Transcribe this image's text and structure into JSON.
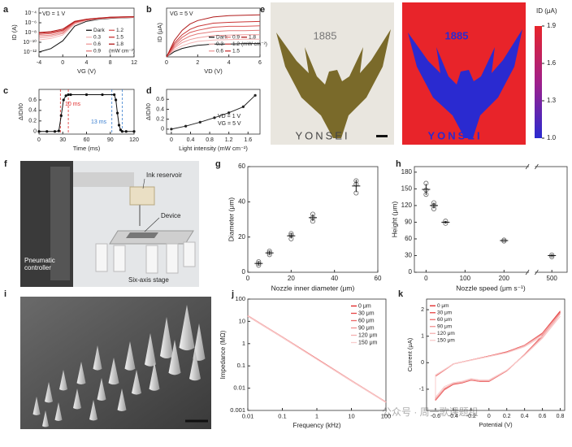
{
  "chart_data": [
    {
      "type": "line",
      "panel": "a",
      "xlabel": "VG (V)",
      "ylabel": "ID (A)",
      "yscale": "log",
      "xlim": [
        -4,
        12
      ],
      "ylim": [
        1e-13,
        0.001
      ],
      "xticks": [
        -4,
        0,
        4,
        8,
        12
      ],
      "yticks": [
        {
          "value": 0.0001,
          "label": "10⁻⁴"
        },
        {
          "value": 1e-06,
          "label": "10⁻⁶"
        },
        {
          "value": 1e-08,
          "label": "10⁻⁸"
        },
        {
          "value": 1e-10,
          "label": "10⁻¹⁰"
        },
        {
          "value": 1e-12,
          "label": "10⁻¹²"
        }
      ],
      "annotations": [
        "VD = 1 V"
      ],
      "legend": "lower right",
      "legend_columns": 2,
      "legend_unit": "(mW cm⁻²)",
      "x": [
        -4,
        -2,
        0,
        2,
        4,
        6,
        8,
        10,
        12
      ],
      "series": [
        {
          "name": "Dark",
          "color": "#111111",
          "values": [
            1e-12,
            5e-12,
            2e-10,
            2e-07,
            2e-06,
            5e-06,
            8e-06,
            1e-05,
            1.2e-05
          ]
        },
        {
          "name": "0.3",
          "color": "#f4b6b6",
          "values": [
            3e-10,
            6e-10,
            3e-09,
            5e-07,
            3e-06,
            6e-06,
            9e-06,
            1.1e-05,
            1.3e-05
          ]
        },
        {
          "name": "0.6",
          "color": "#ee9a9a",
          "values": [
            8e-10,
            1.5e-09,
            6e-09,
            8e-07,
            3.5e-06,
            7e-06,
            1e-05,
            1.2e-05,
            1.4e-05
          ]
        },
        {
          "name": "0.9",
          "color": "#e47a7a",
          "values": [
            2e-09,
            3e-09,
            1e-08,
            1e-06,
            4e-06,
            7.5e-06,
            1.1e-05,
            1.3e-05,
            1.5e-05
          ]
        },
        {
          "name": "1.2",
          "color": "#d95555",
          "values": [
            4e-09,
            6e-09,
            2e-08,
            1.3e-06,
            4.5e-06,
            8e-06,
            1.2e-05,
            1.4e-05,
            1.6e-05
          ]
        },
        {
          "name": "1.5",
          "color": "#c93434",
          "values": [
            7e-09,
            1e-08,
            3e-08,
            1.6e-06,
            5e-06,
            8.5e-06,
            1.3e-05,
            1.5e-05,
            1.7e-05
          ]
        },
        {
          "name": "1.8",
          "color": "#b01a1a",
          "values": [
            1e-08,
            1.5e-08,
            5e-08,
            2e-06,
            5.5e-06,
            9e-06,
            1.4e-05,
            1.6e-05,
            1.8e-05
          ]
        }
      ]
    },
    {
      "type": "line",
      "panel": "b",
      "xlabel": "VD (V)",
      "ylabel": "ID (μA)",
      "xlim": [
        0,
        6
      ],
      "ylim": [
        0,
        11
      ],
      "xticks": [
        0,
        2,
        4,
        6
      ],
      "annotations": [
        "VG = 5 V"
      ],
      "legend": "lower right",
      "legend_columns": 3,
      "legend_unit": "(mW cm⁻²)",
      "x": [
        0,
        0.5,
        1,
        1.5,
        2,
        3,
        4,
        5,
        6
      ],
      "series": [
        {
          "name": "Dark",
          "color": "#111111",
          "values": [
            0,
            1.2,
            1.9,
            2.3,
            2.6,
            2.9,
            2.9,
            3,
            3
          ]
        },
        {
          "name": "0.3",
          "color": "#f4b6b6",
          "values": [
            0,
            1.6,
            2.5,
            3.1,
            3.5,
            3.8,
            3.9,
            4,
            4
          ]
        },
        {
          "name": "0.6",
          "color": "#ee9a9a",
          "values": [
            0,
            2,
            3.2,
            3.9,
            4.3,
            4.8,
            4.9,
            5,
            5
          ]
        },
        {
          "name": "0.9",
          "color": "#e47a7a",
          "values": [
            0,
            2.3,
            3.8,
            4.7,
            5.2,
            5.7,
            5.9,
            5.9,
            6
          ]
        },
        {
          "name": "1.2",
          "color": "#d95555",
          "values": [
            0,
            2.7,
            4.4,
            5.5,
            6,
            6.7,
            6.9,
            6.9,
            7
          ]
        },
        {
          "name": "1.5",
          "color": "#c93434",
          "values": [
            0,
            3.1,
            5,
            6.2,
            6.9,
            7.6,
            7.8,
            7.9,
            8
          ]
        },
        {
          "name": "1.8",
          "color": "#b01a1a",
          "values": [
            0,
            3.7,
            6,
            7.4,
            8.2,
            9,
            9.3,
            9.4,
            9.5
          ]
        }
      ]
    },
    {
      "type": "line",
      "panel": "c",
      "xlabel": "Time (ms)",
      "ylabel": "ΔID/I0",
      "markers": true,
      "color": "#111111",
      "xlim": [
        0,
        120
      ],
      "ylim": [
        -0.05,
        0.8
      ],
      "xticks": [
        0,
        30,
        60,
        90,
        120
      ],
      "yticks": [
        0,
        0.2,
        0.4,
        0.6
      ],
      "annotations": [
        "10 ms",
        "13 ms"
      ],
      "annotation_colors": [
        "#e03030",
        "#3a7fd0"
      ],
      "guides": [
        {
          "x": 27,
          "color": "#e03030"
        },
        {
          "x": 37,
          "color": "#e03030"
        },
        {
          "x": 92,
          "color": "#3a7fd0"
        },
        {
          "x": 105,
          "color": "#3a7fd0"
        }
      ],
      "x": [
        0,
        10,
        20,
        25,
        28,
        31,
        34,
        37,
        40,
        60,
        80,
        95,
        97,
        99,
        101,
        103,
        105,
        110,
        120
      ],
      "values": [
        0,
        0,
        0,
        0.01,
        0.3,
        0.6,
        0.68,
        0.7,
        0.7,
        0.7,
        0.7,
        0.7,
        0.6,
        0.35,
        0.12,
        0.03,
        0,
        0,
        0
      ]
    },
    {
      "type": "line",
      "panel": "d",
      "xlabel": "Light intensity (mW cm⁻²)",
      "ylabel": "ΔID/I0",
      "markers": true,
      "color": "#222222",
      "xlim": [
        -0.1,
        1.85
      ],
      "ylim": [
        -0.1,
        0.8
      ],
      "xticks": [
        0,
        0.4,
        0.8,
        1.2,
        1.6
      ],
      "yticks": [
        0,
        0.2,
        0.4,
        0.6
      ],
      "annotations": [
        "VD = 1 V",
        "VG = 5 V"
      ],
      "x": [
        0,
        0.3,
        0.6,
        0.9,
        1.2,
        1.5,
        1.75
      ],
      "values": [
        0,
        0.06,
        0.14,
        0.23,
        0.33,
        0.45,
        0.68
      ]
    },
    {
      "type": "scatter",
      "panel": "g",
      "xlabel": "Nozzle inner diameter (μm)",
      "ylabel": "Diameter (μm)",
      "color": "#666666",
      "xlim": [
        0,
        60
      ],
      "ylim": [
        0,
        60
      ],
      "xticks": [
        0,
        20,
        40,
        60
      ],
      "yticks": [
        0,
        20,
        40,
        60
      ],
      "x": [
        5,
        5,
        5,
        10,
        10,
        10,
        20,
        20,
        20,
        30,
        30,
        30,
        50,
        50,
        50
      ],
      "values": [
        4,
        5,
        6,
        10,
        11,
        12,
        19,
        21,
        22,
        29,
        31,
        33,
        45,
        50,
        52
      ],
      "summary": {
        "x": [
          5,
          10,
          20,
          30,
          50
        ],
        "values": [
          5,
          11,
          20.7,
          31,
          49
        ],
        "errors": [
          1,
          1,
          1.5,
          2,
          3.5
        ]
      }
    },
    {
      "type": "scatter",
      "panel": "h",
      "xlabel": "Nozzle speed (μm s⁻¹)",
      "ylabel": "Height (μm)",
      "color": "#666666",
      "xlim": [
        -30,
        530
      ],
      "xbreak": [
        260,
        470
      ],
      "ylim": [
        0,
        190
      ],
      "xticks": [
        0,
        100,
        200,
        500
      ],
      "yticks": [
        0,
        30,
        60,
        90,
        120,
        150,
        180
      ],
      "x": [
        0,
        0,
        0,
        20,
        20,
        20,
        50,
        50,
        200,
        200,
        500,
        500
      ],
      "values": [
        140,
        148,
        160,
        114,
        120,
        125,
        88,
        92,
        56,
        58,
        28,
        31
      ],
      "summary": {
        "x": [
          0,
          20,
          50,
          200,
          500
        ],
        "values": [
          149,
          120,
          90,
          57,
          30
        ],
        "errors": [
          10,
          5,
          2,
          1,
          2
        ]
      }
    },
    {
      "type": "line",
      "panel": "j",
      "xlabel": "Frequency (kHz)",
      "ylabel": "Impedance (MΩ)",
      "xscale": "log",
      "yscale": "log",
      "xlim": [
        0.01,
        100
      ],
      "ylim": [
        0.001,
        100
      ],
      "xticks": [
        0.01,
        0.1,
        1,
        10,
        100
      ],
      "yticks": [
        0.001,
        0.01,
        0.1,
        1,
        10,
        100
      ],
      "legend": "upper right",
      "x": [
        0.01,
        0.1,
        1,
        10,
        100
      ],
      "series": [
        {
          "name": "0 μm",
          "color": "#e02020",
          "values": [
            18,
            2,
            0.21,
            0.022,
            0.0024
          ]
        },
        {
          "name": "30 μm",
          "color": "#e64545",
          "values": [
            17,
            1.9,
            0.2,
            0.021,
            0.0023
          ]
        },
        {
          "name": "60 μm",
          "color": "#ec6a6a",
          "values": [
            18,
            2,
            0.21,
            0.022,
            0.0023
          ]
        },
        {
          "name": "90 μm",
          "color": "#f08f8f",
          "values": [
            17,
            1.9,
            0.2,
            0.021,
            0.0024
          ]
        },
        {
          "name": "120 μm",
          "color": "#f4b0b0",
          "values": [
            18,
            2,
            0.2,
            0.022,
            0.0024
          ]
        },
        {
          "name": "150 μm",
          "color": "#f8cccc",
          "values": [
            17,
            1.9,
            0.2,
            0.021,
            0.0023
          ]
        }
      ]
    },
    {
      "type": "line",
      "panel": "k",
      "xlabel": "Potential (V)",
      "ylabel": "Current (μA)",
      "xlim": [
        -0.7,
        0.85
      ],
      "ylim": [
        -1.8,
        2.4
      ],
      "xticks": [
        -0.6,
        -0.4,
        -0.2,
        0,
        0.2,
        0.4,
        0.6,
        0.8
      ],
      "yticks": [
        -1,
        0,
        1,
        2
      ],
      "legend": "upper left",
      "x": [
        -0.6,
        -0.55,
        -0.5,
        -0.4,
        -0.3,
        -0.2,
        -0.1,
        0,
        0.2,
        0.4,
        0.6,
        0.8,
        0.6,
        0.4,
        0.2,
        0,
        -0.2,
        -0.4,
        -0.6,
        -0.6
      ],
      "series": [
        {
          "name": "0 μm",
          "color": "#e02020",
          "values": [
            -1.4,
            -1.2,
            -1.0,
            -0.8,
            -0.75,
            -0.65,
            -0.7,
            -0.7,
            -0.3,
            0.3,
            1.0,
            1.9,
            1.1,
            0.65,
            0.4,
            0.25,
            0.1,
            -0.05,
            -0.5,
            -1.4
          ]
        },
        {
          "name": "30 μm",
          "color": "#e64545",
          "values": [
            -1.42,
            -1.22,
            -1.02,
            -0.82,
            -0.76,
            -0.66,
            -0.71,
            -0.71,
            -0.31,
            0.31,
            1.02,
            1.95,
            1.12,
            0.66,
            0.41,
            0.25,
            0.1,
            -0.05,
            -0.51,
            -1.42
          ]
        },
        {
          "name": "60 μm",
          "color": "#ec6a6a",
          "values": [
            -1.4,
            -1.2,
            -1.0,
            -0.8,
            -0.75,
            -0.65,
            -0.7,
            -0.7,
            -0.3,
            0.3,
            1.0,
            1.9,
            1.1,
            0.65,
            0.4,
            0.25,
            0.1,
            -0.05,
            -0.5,
            -1.4
          ]
        },
        {
          "name": "90 μm",
          "color": "#f08f8f",
          "values": [
            -1.38,
            -1.18,
            -0.98,
            -0.79,
            -0.74,
            -0.64,
            -0.69,
            -0.69,
            -0.3,
            0.29,
            0.98,
            1.88,
            1.08,
            0.64,
            0.39,
            0.24,
            0.1,
            -0.05,
            -0.49,
            -1.38
          ]
        },
        {
          "name": "120 μm",
          "color": "#f4b0b0",
          "values": [
            -1.36,
            -1.16,
            -0.96,
            -0.78,
            -0.73,
            -0.63,
            -0.68,
            -0.68,
            -0.29,
            0.29,
            0.96,
            1.84,
            1.06,
            0.63,
            0.38,
            0.24,
            0.1,
            -0.05,
            -0.48,
            -1.36
          ]
        },
        {
          "name": "150 μm",
          "color": "#f8cccc",
          "values": [
            -1.3,
            -1.1,
            -0.9,
            -0.75,
            -0.7,
            -0.6,
            -0.65,
            -0.65,
            -0.28,
            0.28,
            0.92,
            1.75,
            1.0,
            0.6,
            0.37,
            0.23,
            0.09,
            -0.05,
            -0.46,
            -1.3
          ]
        }
      ]
    }
  ],
  "figure": {
    "e": {
      "panel": "e",
      "photo_texts": [
        "1885",
        "YONSEI"
      ],
      "map_texts": [
        "1885",
        "YONSEI"
      ],
      "colorbar": {
        "title": "ID (μA)",
        "lim": [
          1.0,
          1.9
        ],
        "ticks": [
          1.9,
          1.6,
          1.3,
          {
            "value": 1.0,
            "label": "1.0"
          }
        ]
      }
    },
    "f": {
      "panel": "f",
      "ink_reservoir": "Ink reservoir",
      "device": "Device",
      "pneumatic_controller": "Pneumatic controller",
      "six_axis_stage": "Six-axis stage"
    },
    "i": {
      "panel": "i"
    },
    "watermark": "公众号 · 周一歌课题组"
  }
}
